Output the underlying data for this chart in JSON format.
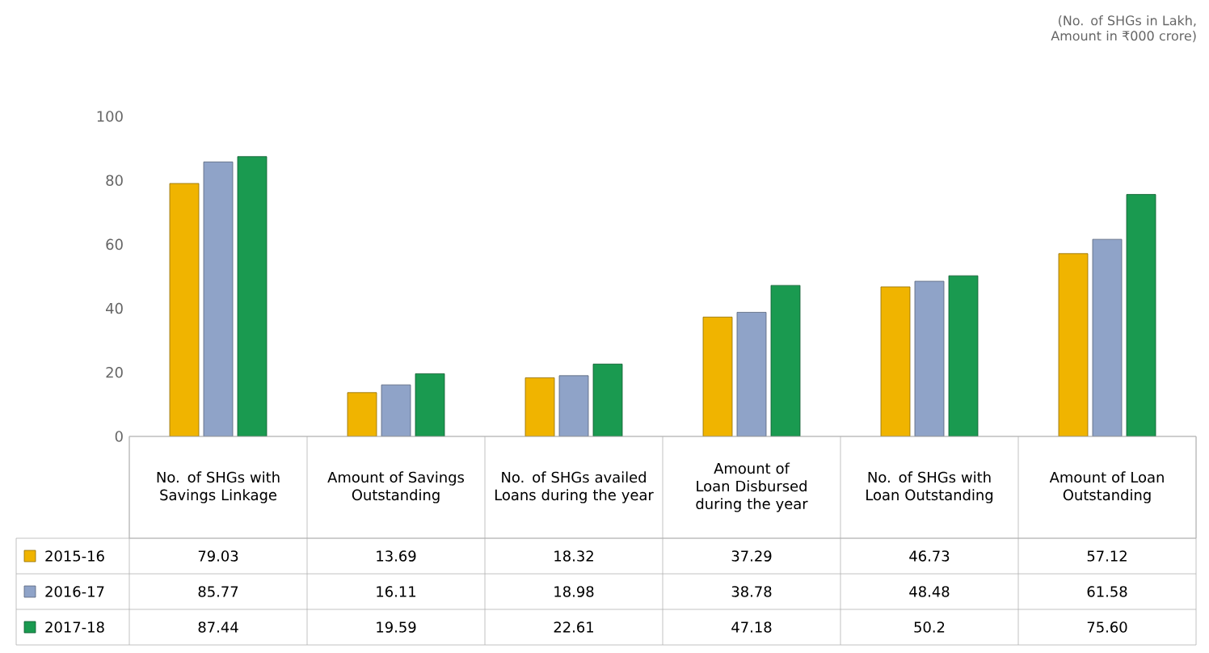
{
  "chart_data": {
    "type": "bar",
    "annotations": [
      "(No. of SHGs in Lakh, Amount in ₹000 crore)"
    ],
    "categories": [
      "No. of SHGs with Savings Linkage",
      "Amount of Savings Outstanding",
      "No. of SHGs availed Loans during the year",
      "Amount of Loan Disbursed during the year",
      "No. of SHGs with Loan Outstanding",
      "Amount of Loan Outstanding"
    ],
    "series": [
      {
        "name": "2015-16",
        "color": "#f0b400",
        "values": [
          79.03,
          13.69,
          18.32,
          37.29,
          46.73,
          57.12
        ],
        "value_labels": [
          "79.03",
          "13.69",
          "18.32",
          "37.29",
          "46.73",
          "57.12"
        ]
      },
      {
        "name": "2016-17",
        "color": "#8fa3c8",
        "values": [
          85.77,
          16.11,
          18.98,
          38.78,
          48.48,
          61.58
        ],
        "value_labels": [
          "85.77",
          "16.11",
          "18.98",
          "38.78",
          "48.48",
          "61.58"
        ]
      },
      {
        "name": "2017-18",
        "color": "#1a9a50",
        "values": [
          87.44,
          19.59,
          22.61,
          47.18,
          50.2,
          75.6
        ],
        "value_labels": [
          "87.44",
          "19.59",
          "22.61",
          "47.18",
          "50.2",
          "75.60"
        ]
      }
    ],
    "ylim": [
      0,
      100
    ],
    "yticks": [
      0,
      20,
      40,
      60,
      80,
      100
    ],
    "legend": "bottom left"
  }
}
